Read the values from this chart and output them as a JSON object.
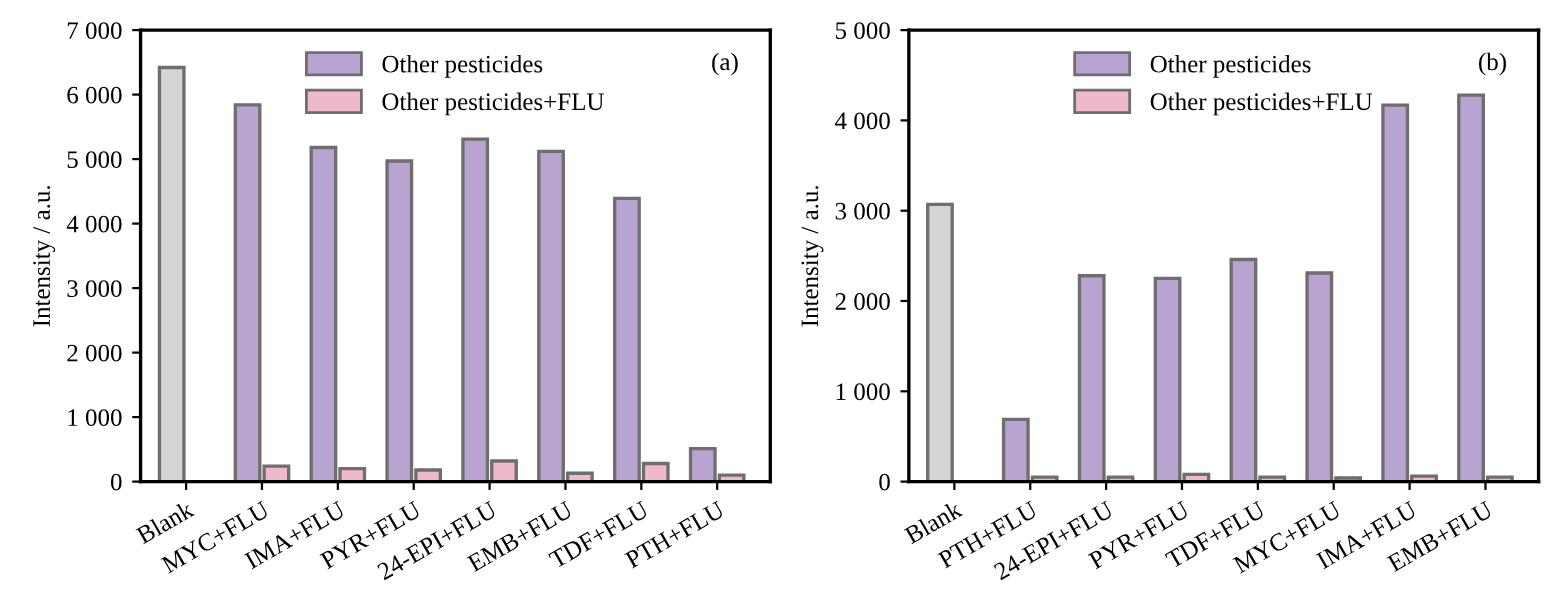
{
  "chart_data": [
    {
      "type": "bar",
      "categories": [
        "Blank",
        "MYC+FLU",
        "IMA+FLU",
        "PYR+FLU",
        "24-EPI+FLU",
        "EMB+FLU",
        "TDF+FLU",
        "PTH+FLU"
      ],
      "ylabel": "Intensity / a.u.",
      "annotations": [
        "(a)"
      ],
      "series": [
        {
          "name": "Other pesticides",
          "color": "#b9a3d1",
          "colors": [
            "#d4d4d4",
            "#b9a3d1",
            "#b9a3d1",
            "#b9a3d1",
            "#b9a3d1",
            "#b9a3d1",
            "#b9a3d1",
            "#b9a3d1"
          ],
          "values": [
            6420,
            5840,
            5180,
            4970,
            5310,
            5120,
            4390,
            510
          ]
        },
        {
          "name": "Other pesticides+FLU",
          "color": "#f0b8cb",
          "values": [
            null,
            240,
            200,
            180,
            320,
            130,
            280,
            100
          ]
        }
      ],
      "ylim": [
        0,
        7000
      ],
      "yticks": [
        {
          "value": 0,
          "label": "0"
        },
        {
          "value": 1000,
          "label": "1 000"
        },
        {
          "value": 2000,
          "label": "2 000"
        },
        {
          "value": 3000,
          "label": "3 000"
        },
        {
          "value": 4000,
          "label": "4 000"
        },
        {
          "value": 5000,
          "label": "5 000"
        },
        {
          "value": 6000,
          "label": "6 000"
        },
        {
          "value": 7000,
          "label": "7 000"
        }
      ],
      "legend": "top",
      "grid": false
    },
    {
      "type": "bar",
      "categories": [
        "Blank",
        "PTH+FLU",
        "24-EPI+FLU",
        "PYR+FLU",
        "TDF+FLU",
        "MYC+FLU",
        "IMA+FLU",
        "EMB+FLU"
      ],
      "ylabel": "Intensity / a.u.",
      "annotations": [
        "(b)"
      ],
      "series": [
        {
          "name": "Other pesticides",
          "color": "#b9a3d1",
          "colors": [
            "#d4d4d4",
            "#b9a3d1",
            "#b9a3d1",
            "#b9a3d1",
            "#b9a3d1",
            "#b9a3d1",
            "#b9a3d1",
            "#b9a3d1"
          ],
          "values": [
            3070,
            690,
            2280,
            2250,
            2460,
            2310,
            4170,
            4280
          ]
        },
        {
          "name": "Other pesticides+FLU",
          "color": "#f0b8cb",
          "values": [
            null,
            50,
            50,
            80,
            50,
            40,
            60,
            50
          ]
        }
      ],
      "ylim": [
        0,
        5000
      ],
      "yticks": [
        {
          "value": 0,
          "label": "0"
        },
        {
          "value": 1000,
          "label": "1 000"
        },
        {
          "value": 2000,
          "label": "2 000"
        },
        {
          "value": 3000,
          "label": "3 000"
        },
        {
          "value": 4000,
          "label": "4 000"
        },
        {
          "value": 5000,
          "label": "5 000"
        }
      ],
      "legend": "top",
      "grid": false
    }
  ]
}
